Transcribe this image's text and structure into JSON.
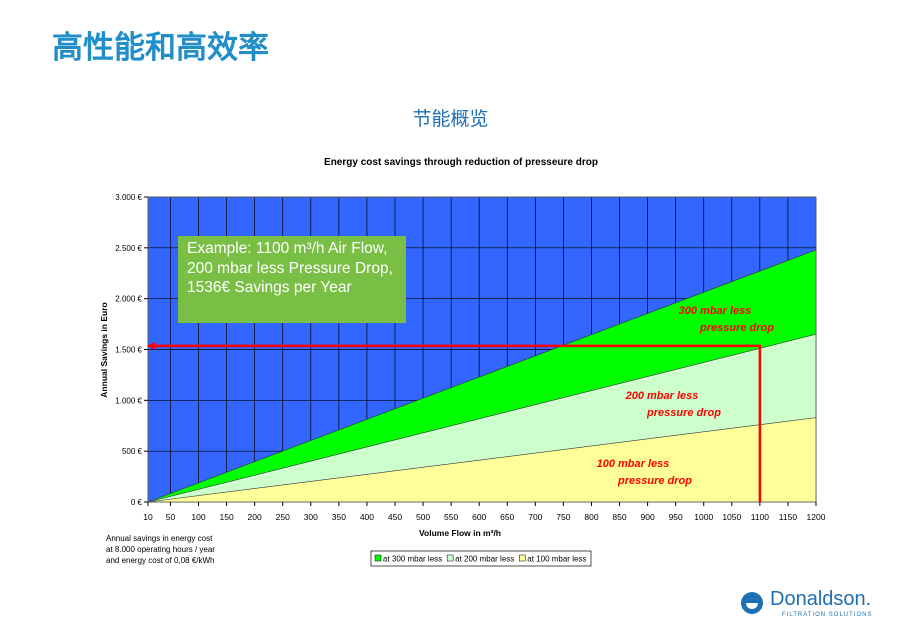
{
  "slide_title": "高性能和高效率",
  "slide_subtitle": "节能概览",
  "chart_data": {
    "type": "area",
    "title": "Energy cost savings through reduction of presseure drop",
    "xlabel": "Volume Flow in m³/h",
    "ylabel": "Annual Savings in Euro",
    "x": [
      10,
      1200
    ],
    "series": [
      {
        "name": "at 300 mbar less",
        "color": "#00ff00",
        "values": [
          0,
          2480
        ]
      },
      {
        "name": "at 200 mbar less",
        "color": "#ccffcc",
        "values": [
          0,
          1650
        ]
      },
      {
        "name": "at 100 mbar less",
        "color": "#ffff99",
        "values": [
          0,
          830
        ]
      }
    ],
    "xlim": [
      10,
      1200
    ],
    "xticks": [
      10,
      50,
      100,
      150,
      200,
      250,
      300,
      350,
      400,
      450,
      500,
      550,
      600,
      650,
      700,
      750,
      800,
      850,
      900,
      950,
      1000,
      1050,
      1100,
      1150,
      1200
    ],
    "ylim": [
      0,
      3000
    ],
    "yticks": [
      {
        "value": 0,
        "label": "0 €"
      },
      {
        "value": 500,
        "label": "500 €"
      },
      {
        "value": 1000,
        "label": "1.000 €"
      },
      {
        "value": 1500,
        "label": "1.500 €"
      },
      {
        "value": 2000,
        "label": "2.000 €"
      },
      {
        "value": 2500,
        "label": "2.500 €"
      },
      {
        "value": 3000,
        "label": "3.000 €"
      }
    ],
    "grid": true,
    "background": "#3366ff",
    "series_labels": [
      [
        "300 mbar less",
        "pressure drop"
      ],
      [
        "200 mbar  less",
        "pressure drop"
      ],
      [
        "100 mbar less",
        "pressure drop"
      ]
    ],
    "marker": {
      "x": 1100,
      "y": 1536,
      "color": "#ff0000"
    },
    "note": "Example: 1100 m³/h Air Flow, 200 mbar less Pressure Drop, 1536€ Savings per Year",
    "footnote": [
      "Annual savings in energy cost",
      "at 8.000 operating hours / year",
      "and energy cost of 0,08 €/kWh"
    ]
  },
  "logo": {
    "name": "Donaldson.",
    "tagline": "FILTRATION SOLUTIONS"
  }
}
